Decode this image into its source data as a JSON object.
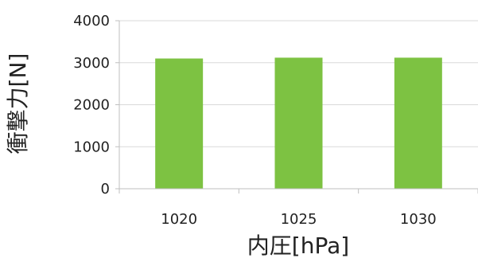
{
  "chart_data": {
    "type": "bar",
    "categories": [
      "1020",
      "1025",
      "1030"
    ],
    "values": [
      3100,
      3120,
      3120
    ],
    "xlabel": "内圧[hPa]",
    "ylabel": "衝撃力[N]",
    "ylim": [
      0,
      4000
    ],
    "yticks": [
      "0",
      "1000",
      "2000",
      "3000",
      "4000"
    ],
    "grid": true,
    "bar_color": "#7DC242",
    "grid_color": "#D9D9D9",
    "axis_color": "#BFBFBF"
  }
}
